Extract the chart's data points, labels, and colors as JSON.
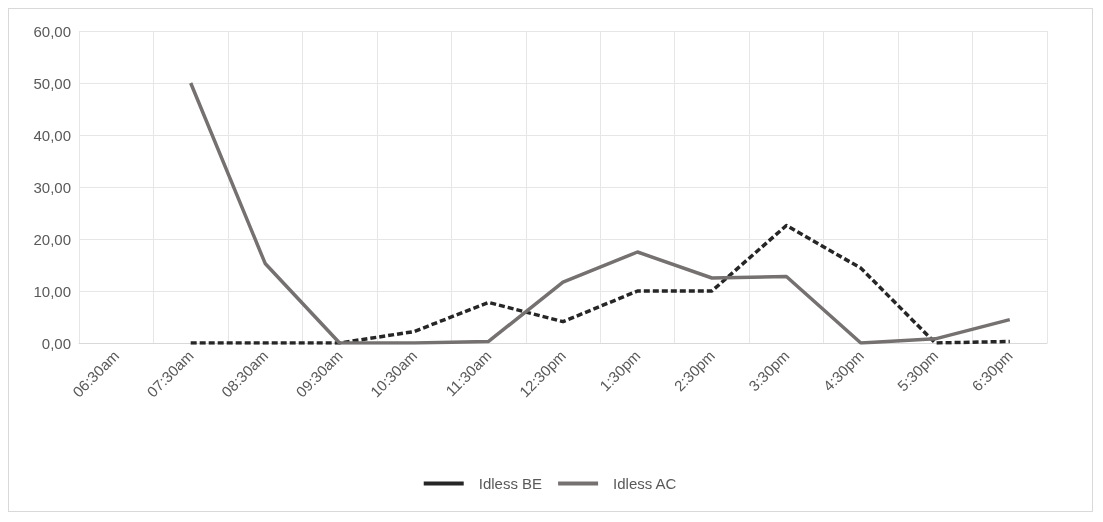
{
  "chart_data": {
    "type": "line",
    "categories": [
      "06:30am",
      "07:30am",
      "08:30am",
      "09:30am",
      "10:30am",
      "11:30am",
      "12:30pm",
      "1:30pm",
      "2:30pm",
      "3:30pm",
      "4:30pm",
      "5:30pm",
      "6:30pm"
    ],
    "series": [
      {
        "name": "Idless BE",
        "color": "#262626",
        "line_style": "dashed",
        "values": [
          null,
          0,
          0,
          0,
          2.2,
          7.8,
          4.1,
          10,
          10,
          22.6,
          14.4,
          0,
          0.3
        ]
      },
      {
        "name": "Idless AC",
        "color": "#767171",
        "line_style": "solid",
        "values": [
          null,
          50,
          15.3,
          0,
          0,
          0.3,
          11.7,
          17.5,
          12.5,
          12.8,
          0,
          0.8,
          4.5
        ]
      }
    ],
    "ylim": [
      0,
      60
    ],
    "yticks": [
      {
        "value": 0,
        "label": "0,00"
      },
      {
        "value": 10,
        "label": "10,00"
      },
      {
        "value": 20,
        "label": "20,00"
      },
      {
        "value": 30,
        "label": "30,00"
      },
      {
        "value": 40,
        "label": "40,00"
      },
      {
        "value": 50,
        "label": "50,00"
      },
      {
        "value": 60,
        "label": "60,00"
      }
    ],
    "grid": true,
    "legend": "bottom",
    "marker": "none"
  }
}
